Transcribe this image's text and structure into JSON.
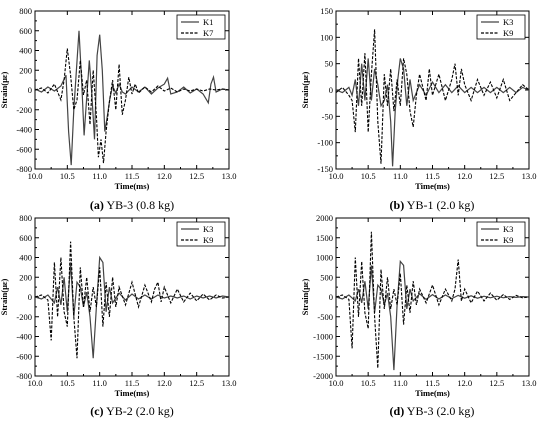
{
  "figure": {
    "captions": [
      {
        "letter": "(a)",
        "text": " YB-3 (0.8 kg)"
      },
      {
        "letter": "(b)",
        "text": " YB-1 (2.0 kg)"
      },
      {
        "letter": "(c)",
        "text": " YB-2 (2.0 kg)"
      },
      {
        "letter": "(d)",
        "text": " YB-3 (2.0 kg)"
      }
    ]
  },
  "chart_data": [
    {
      "type": "line",
      "xlabel": "Time(ms)",
      "ylabel": "Strain(με)",
      "xlim": [
        10.0,
        13.0
      ],
      "ylim": [
        -800,
        800
      ],
      "xticks": [
        10.0,
        10.5,
        11.0,
        11.5,
        12.0,
        12.5,
        13.0
      ],
      "yticks": [
        -800,
        -600,
        -400,
        -200,
        0,
        200,
        400,
        600,
        800
      ],
      "legend_position": "top-right",
      "series": [
        {
          "name": "K1",
          "style": "solid",
          "x": [
            10.0,
            10.1,
            10.2,
            10.3,
            10.4,
            10.48,
            10.52,
            10.56,
            10.6,
            10.64,
            10.68,
            10.72,
            10.76,
            10.8,
            10.84,
            10.88,
            10.92,
            10.96,
            11.0,
            11.04,
            11.08,
            11.12,
            11.16,
            11.2,
            11.25,
            11.3,
            11.35,
            11.4,
            11.5,
            11.6,
            11.7,
            11.8,
            11.9,
            12.0,
            12.05,
            12.1,
            12.2,
            12.3,
            12.4,
            12.5,
            12.6,
            12.68,
            12.72,
            12.76,
            12.8,
            12.9,
            13.0
          ],
          "y": [
            10,
            -20,
            30,
            -10,
            40,
            150,
            -420,
            -760,
            -200,
            200,
            600,
            100,
            -460,
            -80,
            300,
            -50,
            -500,
            350,
            560,
            200,
            -420,
            -260,
            -80,
            40,
            -30,
            60,
            -20,
            -40,
            30,
            -20,
            30,
            -40,
            20,
            60,
            120,
            -40,
            -20,
            30,
            -30,
            10,
            -40,
            -130,
            60,
            130,
            -20,
            10,
            0
          ]
        },
        {
          "name": "K7",
          "style": "dashed",
          "x": [
            10.0,
            10.1,
            10.2,
            10.3,
            10.4,
            10.45,
            10.5,
            10.55,
            10.6,
            10.65,
            10.7,
            10.75,
            10.8,
            10.85,
            10.9,
            10.95,
            10.98,
            11.02,
            11.06,
            11.1,
            11.15,
            11.2,
            11.25,
            11.3,
            11.35,
            11.4,
            11.45,
            11.5,
            11.55,
            11.6,
            11.7,
            11.8,
            11.9,
            12.0,
            12.1,
            12.2,
            12.3,
            12.4,
            12.5,
            12.6,
            12.7,
            12.8,
            12.9,
            13.0
          ],
          "y": [
            0,
            20,
            -30,
            60,
            -100,
            100,
            420,
            150,
            -200,
            -100,
            300,
            -50,
            100,
            -350,
            200,
            -260,
            -680,
            -500,
            -740,
            -420,
            -120,
            100,
            -200,
            260,
            -250,
            -100,
            130,
            -40,
            60,
            -30,
            30,
            -20,
            40,
            -10,
            20,
            -20,
            10,
            -10,
            10,
            -10,
            10,
            0,
            10,
            0
          ]
        }
      ]
    },
    {
      "type": "line",
      "xlabel": "Time(ms)",
      "ylabel": "Strain(με)",
      "xlim": [
        10.0,
        13.0
      ],
      "ylim": [
        -150,
        150
      ],
      "xticks": [
        10.0,
        10.5,
        11.0,
        11.5,
        12.0,
        12.5,
        13.0
      ],
      "yticks": [
        -150,
        -100,
        -50,
        0,
        50,
        100,
        150
      ],
      "legend_position": "top-right",
      "series": [
        {
          "name": "K3",
          "style": "solid",
          "x": [
            10.0,
            10.1,
            10.2,
            10.25,
            10.3,
            10.35,
            10.4,
            10.45,
            10.5,
            10.55,
            10.6,
            10.65,
            10.7,
            10.75,
            10.8,
            10.85,
            10.88,
            10.92,
            10.96,
            11.0,
            11.05,
            11.1,
            11.15,
            11.2,
            11.3,
            11.4,
            11.5,
            11.6,
            11.7,
            11.8,
            11.9,
            12.0,
            12.1,
            12.2,
            12.3,
            12.4,
            12.5,
            12.6,
            12.7,
            12.8,
            12.9,
            13.0
          ],
          "y": [
            0,
            -5,
            5,
            -10,
            20,
            -30,
            50,
            -20,
            60,
            -20,
            40,
            10,
            -30,
            -20,
            10,
            -60,
            -145,
            -40,
            20,
            60,
            40,
            -30,
            20,
            -20,
            10,
            -10,
            15,
            -5,
            10,
            -5,
            8,
            -5,
            5,
            -5,
            5,
            -5,
            5,
            -5,
            5,
            -5,
            5,
            0
          ]
        },
        {
          "name": "K9",
          "style": "dashed",
          "x": [
            10.0,
            10.1,
            10.2,
            10.25,
            10.3,
            10.35,
            10.4,
            10.45,
            10.5,
            10.55,
            10.6,
            10.65,
            10.7,
            10.75,
            10.8,
            10.85,
            10.9,
            10.95,
            11.0,
            11.05,
            11.1,
            11.15,
            11.2,
            11.25,
            11.3,
            11.4,
            11.45,
            11.5,
            11.6,
            11.7,
            11.8,
            11.85,
            11.9,
            11.95,
            12.0,
            12.1,
            12.2,
            12.3,
            12.4,
            12.5,
            12.6,
            12.7,
            12.8,
            12.9,
            13.0
          ],
          "y": [
            -5,
            5,
            -10,
            -20,
            -80,
            60,
            -30,
            70,
            -80,
            30,
            115,
            -60,
            -140,
            30,
            -30,
            40,
            -40,
            20,
            -30,
            60,
            30,
            -40,
            -70,
            -10,
            30,
            -20,
            40,
            -10,
            30,
            -20,
            20,
            50,
            -10,
            40,
            10,
            -20,
            20,
            -10,
            15,
            -15,
            20,
            -20,
            -5,
            10,
            0
          ]
        }
      ]
    },
    {
      "type": "line",
      "xlabel": "Time(ms)",
      "ylabel": "Strain(με)",
      "xlim": [
        10.0,
        13.0
      ],
      "ylim": [
        -800,
        800
      ],
      "xticks": [
        10.0,
        10.5,
        11.0,
        11.5,
        12.0,
        12.5,
        13.0
      ],
      "yticks": [
        -800,
        -600,
        -400,
        -200,
        0,
        200,
        400,
        600,
        800
      ],
      "legend_position": "top-right",
      "series": [
        {
          "name": "K3",
          "style": "solid",
          "x": [
            10.0,
            10.1,
            10.2,
            10.3,
            10.35,
            10.4,
            10.45,
            10.5,
            10.55,
            10.6,
            10.65,
            10.7,
            10.75,
            10.8,
            10.85,
            10.9,
            10.95,
            11.0,
            11.05,
            11.1,
            11.15,
            11.2,
            11.3,
            11.4,
            11.5,
            11.6,
            11.7,
            11.8,
            11.9,
            12.0,
            12.1,
            12.2,
            12.3,
            12.4,
            12.5,
            12.6,
            12.7,
            12.8,
            12.9,
            13.0
          ],
          "y": [
            0,
            -20,
            20,
            -60,
            100,
            -80,
            200,
            -150,
            350,
            -200,
            150,
            100,
            -100,
            50,
            -200,
            -620,
            -100,
            400,
            350,
            -150,
            100,
            -60,
            40,
            -30,
            30,
            -20,
            20,
            -20,
            20,
            -10,
            10,
            -10,
            10,
            -20,
            10,
            -10,
            10,
            -10,
            10,
            0
          ]
        },
        {
          "name": "K9",
          "style": "dashed",
          "x": [
            10.0,
            10.1,
            10.2,
            10.25,
            10.3,
            10.35,
            10.4,
            10.45,
            10.5,
            10.55,
            10.6,
            10.65,
            10.7,
            10.75,
            10.8,
            10.85,
            10.9,
            10.95,
            11.0,
            11.05,
            11.1,
            11.15,
            11.2,
            11.25,
            11.3,
            11.4,
            11.5,
            11.6,
            11.7,
            11.8,
            11.85,
            11.9,
            11.95,
            12.0,
            12.1,
            12.2,
            12.3,
            12.4,
            12.5,
            12.6,
            12.7,
            12.8,
            12.9,
            13.0
          ],
          "y": [
            0,
            20,
            -30,
            -440,
            350,
            -200,
            400,
            -150,
            -300,
            560,
            -200,
            -620,
            300,
            -100,
            200,
            -150,
            100,
            -100,
            300,
            -300,
            150,
            -200,
            200,
            -100,
            100,
            -80,
            150,
            -100,
            120,
            -50,
            80,
            150,
            -50,
            100,
            -60,
            80,
            -50,
            40,
            -40,
            30,
            -30,
            20,
            -10,
            0
          ]
        }
      ]
    },
    {
      "type": "line",
      "xlabel": "Time(ms)",
      "ylabel": "Strain(με)",
      "xlim": [
        10.0,
        13.0
      ],
      "ylim": [
        -2000,
        2000
      ],
      "xticks": [
        10.0,
        10.5,
        11.0,
        11.5,
        12.0,
        12.5,
        13.0
      ],
      "yticks": [
        -2000,
        -1500,
        -1000,
        -500,
        0,
        500,
        1000,
        1500,
        2000
      ],
      "legend_position": "top-right",
      "series": [
        {
          "name": "K3",
          "style": "solid",
          "x": [
            10.0,
            10.1,
            10.2,
            10.3,
            10.35,
            10.4,
            10.45,
            10.5,
            10.55,
            10.6,
            10.65,
            10.7,
            10.75,
            10.8,
            10.85,
            10.9,
            10.95,
            11.0,
            11.05,
            11.1,
            11.15,
            11.2,
            11.3,
            11.4,
            11.5,
            11.6,
            11.7,
            11.8,
            11.9,
            12.0,
            12.1,
            12.2,
            12.3,
            12.4,
            12.5,
            12.6,
            12.7,
            12.8,
            12.9,
            13.0
          ],
          "y": [
            0,
            -50,
            50,
            -100,
            200,
            -150,
            400,
            -300,
            800,
            -400,
            300,
            200,
            -200,
            100,
            -500,
            -1850,
            -200,
            900,
            800,
            -300,
            200,
            -100,
            80,
            -60,
            60,
            -50,
            50,
            -40,
            40,
            -30,
            30,
            -30,
            20,
            -20,
            20,
            -20,
            10,
            -10,
            10,
            0
          ]
        },
        {
          "name": "K9",
          "style": "dashed",
          "x": [
            10.0,
            10.1,
            10.2,
            10.25,
            10.3,
            10.35,
            10.4,
            10.45,
            10.5,
            10.55,
            10.6,
            10.65,
            10.7,
            10.75,
            10.8,
            10.85,
            10.9,
            10.95,
            11.0,
            11.05,
            11.1,
            11.15,
            11.2,
            11.25,
            11.3,
            11.4,
            11.5,
            11.6,
            11.7,
            11.8,
            11.85,
            11.9,
            11.95,
            12.0,
            12.1,
            12.2,
            12.3,
            12.4,
            12.5,
            12.6,
            12.7,
            12.8,
            12.9,
            13.0
          ],
          "y": [
            0,
            50,
            -60,
            -1300,
            1000,
            -500,
            900,
            -400,
            -800,
            1650,
            -500,
            -1800,
            700,
            -300,
            500,
            -300,
            200,
            -200,
            600,
            -700,
            300,
            -400,
            400,
            -200,
            200,
            -150,
            300,
            -200,
            200,
            -100,
            200,
            950,
            -100,
            200,
            -150,
            150,
            -100,
            100,
            -80,
            60,
            -60,
            40,
            -20,
            0
          ]
        }
      ]
    }
  ]
}
